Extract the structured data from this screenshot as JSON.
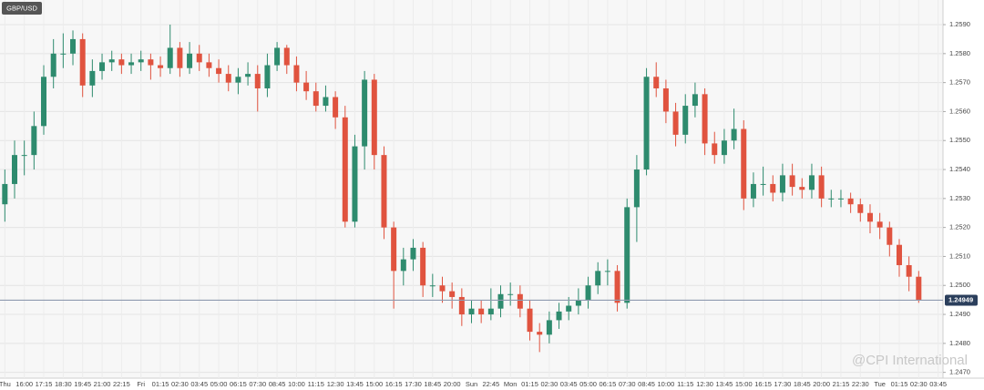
{
  "chart_data": {
    "type": "candlestick",
    "title": "GBP/USD",
    "watermark": "@CPI International",
    "categories": [
      "Thu",
      null,
      "16:00",
      null,
      "17:15",
      null,
      "18:30",
      null,
      "19:45",
      null,
      "21:00",
      null,
      "22:15",
      null,
      "Fri",
      null,
      "01:15",
      null,
      "02:30",
      null,
      "03:45",
      null,
      "05:00",
      null,
      "06:15",
      null,
      "07:30",
      null,
      "08:45",
      null,
      "10:00",
      null,
      "11:15",
      null,
      "12:30",
      null,
      "13:45",
      null,
      "15:00",
      null,
      "16:15",
      null,
      "17:30",
      null,
      "18:45",
      null,
      "20:00",
      null,
      "Sun",
      null,
      "22:45",
      null,
      "Mon",
      null,
      "01:15",
      null,
      "02:30",
      null,
      "03:45",
      null,
      "05:00",
      null,
      "06:15",
      null,
      "07:30",
      null,
      "08:45",
      null,
      "10:00",
      null,
      "11:15",
      null,
      "12:30",
      null,
      "13:45",
      null,
      "15:00",
      null,
      "16:15",
      null,
      "17:30",
      null,
      "18:45",
      null,
      "20:00",
      null,
      "21:15",
      null,
      "22:30",
      null,
      "Tue",
      null,
      "01:15",
      null,
      "02:30",
      null,
      "03:45"
    ],
    "open": [
      1.2528,
      1.2535,
      1.2545,
      1.2545,
      1.2555,
      1.2572,
      1.258,
      1.258,
      1.2585,
      1.2569,
      1.2574,
      1.2577,
      1.2578,
      1.2576,
      1.2577,
      1.2578,
      1.2576,
      1.2575,
      1.2582,
      1.2575,
      1.258,
      1.2577,
      1.2575,
      1.2573,
      1.257,
      1.2572,
      1.2573,
      1.2568,
      1.2576,
      1.2582,
      1.2576,
      1.257,
      1.2567,
      1.2562,
      1.2565,
      1.2558,
      1.2522,
      1.2548,
      1.2571,
      1.2545,
      1.252,
      1.2505,
      1.2509,
      1.2513,
      1.25,
      1.25,
      1.2498,
      1.2496,
      1.249,
      1.2492,
      1.249,
      1.2492,
      1.2497,
      1.2497,
      1.2492,
      1.2484,
      1.2483,
      1.2488,
      1.2491,
      1.2493,
      1.2495,
      1.25,
      1.2505,
      1.2505,
      1.2494,
      1.2527,
      1.254,
      1.2572,
      1.2568,
      1.256,
      1.2552,
      1.2562,
      1.2566,
      1.2549,
      1.2545,
      1.255,
      1.2554,
      1.253,
      1.2535,
      1.2535,
      1.2532,
      1.2538,
      1.2534,
      1.2533,
      1.2538,
      1.253,
      1.253,
      1.253,
      1.2528,
      1.2525,
      1.2522,
      1.252,
      1.2514,
      1.2507,
      1.2503,
      null,
      null
    ],
    "high": [
      1.254,
      1.255,
      1.255,
      1.256,
      1.2576,
      1.2585,
      1.2587,
      1.2588,
      1.2587,
      1.2578,
      1.258,
      1.2581,
      1.258,
      1.258,
      1.2581,
      1.258,
      1.2579,
      1.259,
      1.2584,
      1.2584,
      1.2583,
      1.258,
      1.2578,
      1.2576,
      1.2575,
      1.2577,
      1.2576,
      1.258,
      1.2584,
      1.2583,
      1.2579,
      1.2574,
      1.257,
      1.2569,
      1.2567,
      1.2562,
      1.2552,
      1.2574,
      1.2573,
      1.2548,
      1.2522,
      1.2513,
      1.2516,
      1.2515,
      1.2504,
      1.2503,
      1.2501,
      1.2499,
      1.2495,
      1.2495,
      1.2499,
      1.25,
      1.2501,
      1.25,
      1.2495,
      1.2487,
      1.2491,
      1.2494,
      1.2496,
      1.2499,
      1.2503,
      1.2508,
      1.2509,
      1.2507,
      1.253,
      1.2545,
      1.2575,
      1.2577,
      1.2571,
      1.2563,
      1.2566,
      1.257,
      1.2568,
      1.2553,
      1.2554,
      1.2561,
      1.2557,
      1.2539,
      1.2541,
      1.2538,
      1.2542,
      1.2542,
      1.2537,
      1.2542,
      1.2541,
      1.2533,
      1.2533,
      1.2532,
      1.253,
      1.2528,
      1.2525,
      1.2522,
      1.2516,
      1.251,
      1.2505,
      null,
      null
    ],
    "low": [
      1.2522,
      1.253,
      1.2538,
      1.254,
      1.2552,
      1.2568,
      1.2575,
      1.2576,
      1.2565,
      1.2565,
      1.2571,
      1.2574,
      1.2573,
      1.2573,
      1.2574,
      1.2571,
      1.2572,
      1.2573,
      1.2572,
      1.2573,
      1.2574,
      1.2572,
      1.257,
      1.2567,
      1.2566,
      1.2569,
      1.256,
      1.2565,
      1.2574,
      1.2573,
      1.2567,
      1.2564,
      1.256,
      1.256,
      1.2554,
      1.252,
      1.252,
      1.254,
      1.254,
      1.2516,
      1.2492,
      1.25,
      1.2505,
      1.2496,
      1.2496,
      1.2494,
      1.2492,
      1.2486,
      1.2487,
      1.2487,
      1.2488,
      1.2489,
      1.2493,
      1.2489,
      1.2481,
      1.2477,
      1.248,
      1.2485,
      1.2488,
      1.249,
      1.2492,
      1.2497,
      1.25,
      1.2491,
      1.2492,
      1.2515,
      1.2538,
      1.2565,
      1.2556,
      1.2548,
      1.2549,
      1.2558,
      1.2545,
      1.2542,
      1.2542,
      1.2547,
      1.2526,
      1.2527,
      1.2531,
      1.2529,
      1.2529,
      1.2531,
      1.253,
      1.253,
      1.2527,
      1.2527,
      1.2527,
      1.2525,
      1.2522,
      1.2518,
      1.2516,
      1.251,
      1.2503,
      1.2498,
      1.2494,
      null,
      null
    ],
    "close": [
      1.2535,
      1.2545,
      1.2545,
      1.2555,
      1.2572,
      1.258,
      1.258,
      1.2585,
      1.2569,
      1.2574,
      1.2577,
      1.2578,
      1.2576,
      1.2577,
      1.2578,
      1.2576,
      1.2575,
      1.2582,
      1.2575,
      1.258,
      1.2577,
      1.2575,
      1.2573,
      1.257,
      1.2572,
      1.2573,
      1.2568,
      1.2576,
      1.2582,
      1.2576,
      1.257,
      1.2567,
      1.2562,
      1.2565,
      1.2558,
      1.2522,
      1.2548,
      1.2571,
      1.2545,
      1.252,
      1.2505,
      1.2509,
      1.2513,
      1.25,
      1.25,
      1.2498,
      1.2496,
      1.249,
      1.2492,
      1.249,
      1.2492,
      1.2497,
      1.2497,
      1.2492,
      1.2484,
      1.2483,
      1.2488,
      1.2491,
      1.2493,
      1.2495,
      1.25,
      1.2505,
      1.2505,
      1.2494,
      1.2527,
      1.254,
      1.2572,
      1.2568,
      1.256,
      1.2552,
      1.2562,
      1.2566,
      1.2549,
      1.2545,
      1.255,
      1.2554,
      1.253,
      1.2535,
      1.2535,
      1.2532,
      1.2538,
      1.2534,
      1.2533,
      1.2538,
      1.253,
      1.253,
      1.253,
      1.2528,
      1.2525,
      1.2522,
      1.252,
      1.2514,
      1.2507,
      1.2503,
      1.24949,
      null,
      null
    ],
    "up_color": "#2e8b6e",
    "down_color": "#e0533f",
    "last_price": 1.24949,
    "ylim": [
      1.2468,
      1.25985
    ],
    "yticks": [
      {
        "value": 1.247,
        "label": "1.2470"
      },
      {
        "value": 1.248,
        "label": "1.2480"
      },
      {
        "value": 1.249,
        "label": "1.2490"
      },
      {
        "value": 1.25,
        "label": "1.2500"
      },
      {
        "value": 1.251,
        "label": "1.2510"
      },
      {
        "value": 1.252,
        "label": "1.2520"
      },
      {
        "value": 1.253,
        "label": "1.2530"
      },
      {
        "value": 1.254,
        "label": "1.2540"
      },
      {
        "value": 1.255,
        "label": "1.2550"
      },
      {
        "value": 1.256,
        "label": "1.2560"
      },
      {
        "value": 1.257,
        "label": "1.2570"
      },
      {
        "value": 1.258,
        "label": "1.2580"
      },
      {
        "value": 1.259,
        "label": "1.2590"
      }
    ],
    "grid": true
  }
}
